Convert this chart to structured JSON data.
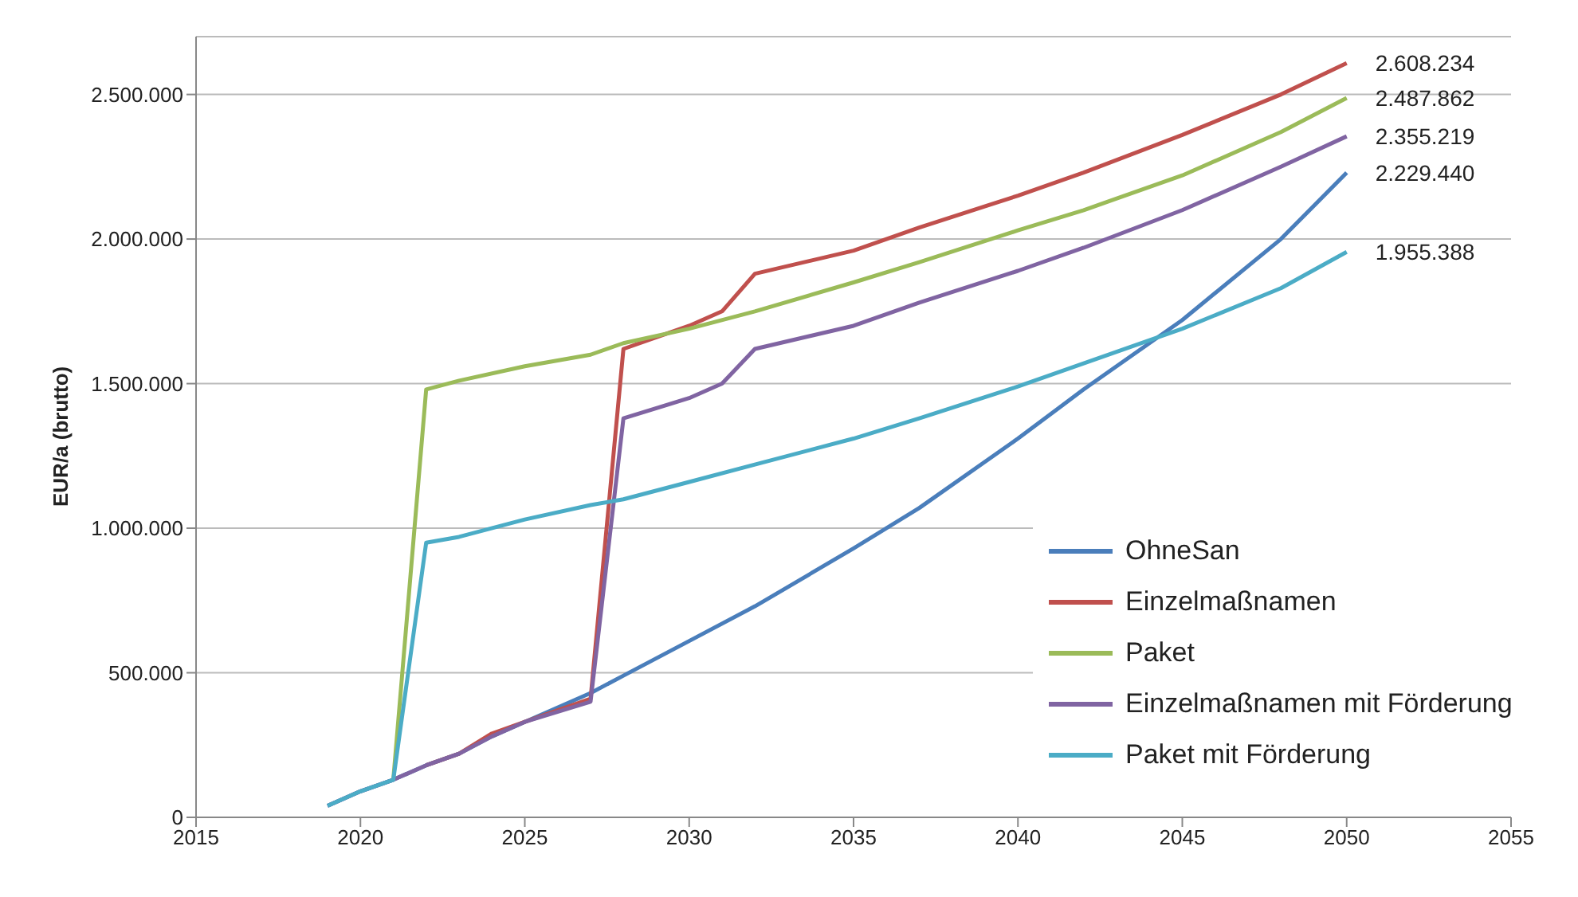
{
  "chart_data": {
    "type": "line",
    "ylabel": "EUR/a (brutto)",
    "xlim": [
      2015,
      2055
    ],
    "xticks": [
      2015,
      2020,
      2025,
      2030,
      2035,
      2040,
      2045,
      2050,
      2055
    ],
    "ylim": [
      0,
      2700000
    ],
    "yticks": [
      {
        "value": 0,
        "label": "0"
      },
      {
        "value": 500000,
        "label": "500.000"
      },
      {
        "value": 1000000,
        "label": "1.000.000"
      },
      {
        "value": 1500000,
        "label": "1.500.000"
      },
      {
        "value": 2000000,
        "label": "2.000.000"
      },
      {
        "value": 2500000,
        "label": "2.500.000"
      }
    ],
    "grid": "y",
    "legend": "bottom right",
    "marker": "none",
    "line_style": "solid",
    "series": [
      {
        "name": "OhneSan",
        "color": "#4a7ebb",
        "x": [
          2019,
          2020,
          2021,
          2022,
          2023,
          2024,
          2025,
          2027,
          2028,
          2030,
          2032,
          2035,
          2037,
          2040,
          2042,
          2045,
          2048,
          2050
        ],
        "values": [
          40000,
          90000,
          130000,
          180000,
          220000,
          280000,
          330000,
          430000,
          490000,
          610000,
          730000,
          930000,
          1070000,
          1310000,
          1480000,
          1720000,
          2000000,
          2229440
        ],
        "value_labels": [
          null,
          null,
          null,
          null,
          null,
          null,
          null,
          null,
          null,
          null,
          null,
          null,
          null,
          null,
          null,
          null,
          null,
          "2.229.440"
        ]
      },
      {
        "name": "Einzelmaßnamen",
        "color": "#c0504d",
        "x": [
          2022,
          2023,
          2024,
          2025,
          2027,
          2028,
          2029,
          2030,
          2031,
          2032,
          2035,
          2037,
          2040,
          2042,
          2045,
          2048,
          2050
        ],
        "values": [
          180000,
          220000,
          290000,
          330000,
          410000,
          1620000,
          1660000,
          1700000,
          1750000,
          1880000,
          1960000,
          2040000,
          2150000,
          2230000,
          2360000,
          2500000,
          2608234
        ],
        "value_labels": [
          null,
          null,
          null,
          null,
          null,
          null,
          null,
          null,
          null,
          null,
          null,
          null,
          null,
          null,
          null,
          null,
          "2.608.234"
        ]
      },
      {
        "name": "Paket",
        "color": "#9bbb59",
        "x": [
          2021,
          2022,
          2023,
          2025,
          2027,
          2028,
          2030,
          2032,
          2035,
          2037,
          2040,
          2042,
          2045,
          2048,
          2050
        ],
        "values": [
          130000,
          1480000,
          1510000,
          1560000,
          1600000,
          1640000,
          1690000,
          1750000,
          1850000,
          1920000,
          2030000,
          2100000,
          2220000,
          2370000,
          2487862
        ],
        "value_labels": [
          null,
          null,
          null,
          null,
          null,
          null,
          null,
          null,
          null,
          null,
          null,
          null,
          null,
          null,
          "2.487.862"
        ]
      },
      {
        "name": "Einzelmaßnamen mit Förderung",
        "color": "#8064a2",
        "x": [
          2019,
          2020,
          2021,
          2022,
          2023,
          2024,
          2025,
          2027,
          2028,
          2030,
          2031,
          2032,
          2035,
          2037,
          2040,
          2042,
          2045,
          2048,
          2050
        ],
        "values": [
          40000,
          90000,
          130000,
          180000,
          220000,
          280000,
          330000,
          400000,
          1380000,
          1450000,
          1500000,
          1620000,
          1700000,
          1780000,
          1890000,
          1970000,
          2100000,
          2250000,
          2355219
        ],
        "value_labels": [
          null,
          null,
          null,
          null,
          null,
          null,
          null,
          null,
          null,
          null,
          null,
          null,
          null,
          null,
          null,
          null,
          null,
          null,
          "2.355.219"
        ]
      },
      {
        "name": "Paket mit Förderung",
        "color": "#4bacc6",
        "x": [
          2019,
          2020,
          2021,
          2022,
          2023,
          2025,
          2027,
          2028,
          2030,
          2032,
          2035,
          2037,
          2040,
          2042,
          2045,
          2048,
          2050
        ],
        "values": [
          40000,
          90000,
          130000,
          950000,
          970000,
          1030000,
          1080000,
          1100000,
          1160000,
          1220000,
          1310000,
          1380000,
          1490000,
          1570000,
          1690000,
          1830000,
          1955388
        ],
        "value_labels": [
          null,
          null,
          null,
          null,
          null,
          null,
          null,
          null,
          null,
          null,
          null,
          null,
          null,
          null,
          null,
          null,
          "1.955.388"
        ]
      }
    ]
  }
}
